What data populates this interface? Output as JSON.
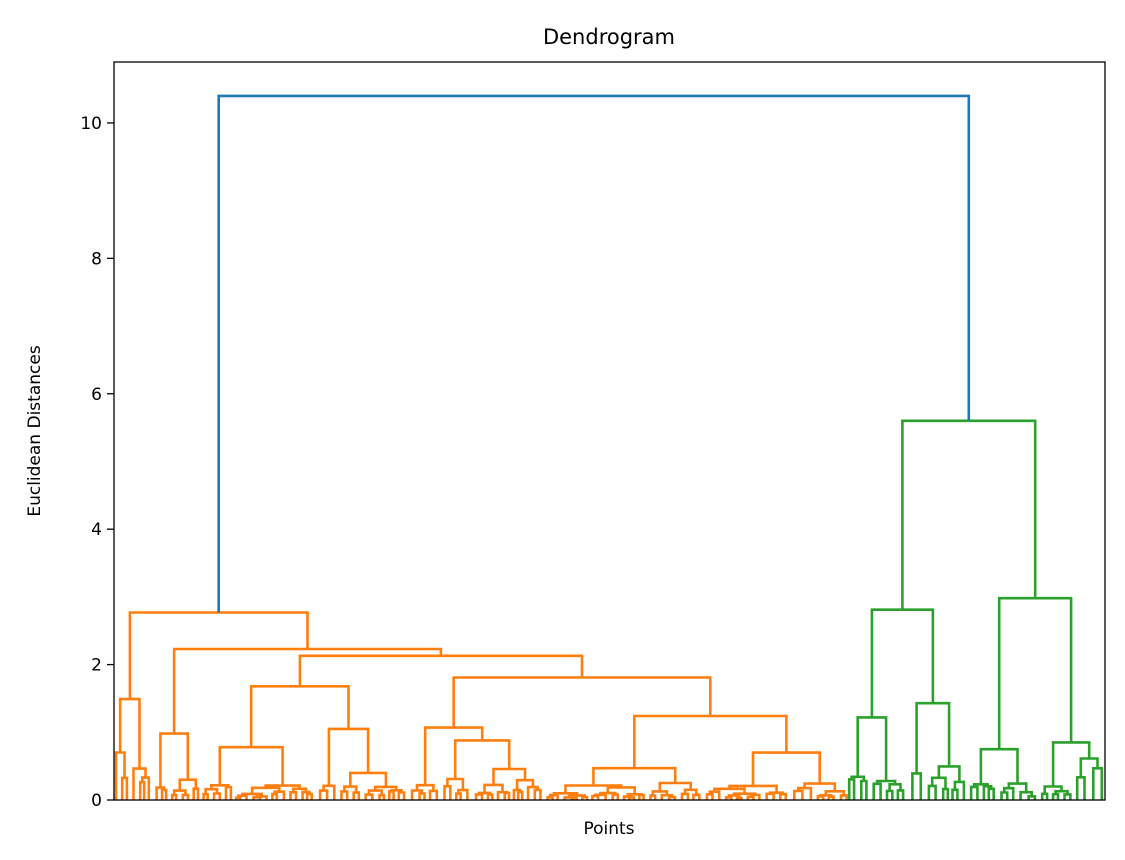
{
  "chart_data": {
    "type": "dendrogram",
    "title": "Dendrogram",
    "xlabel": "Points",
    "ylabel": "Euclidean Distances",
    "ylim": [
      0,
      10.9
    ],
    "yticks": [
      0,
      2,
      4,
      6,
      8,
      10
    ],
    "xticks_visible": false,
    "grid": false,
    "cluster_colors": {
      "root": "#1f77b4",
      "cluster_1": "#ff7f0e",
      "cluster_2": "#2ca02c"
    },
    "merges": [
      {
        "cluster": "root",
        "height": 10.4
      },
      {
        "cluster": "cluster_1",
        "height": 2.77
      },
      {
        "cluster": "cluster_1",
        "height": 2.23
      },
      {
        "cluster": "cluster_1",
        "height": 2.13
      },
      {
        "cluster": "cluster_1",
        "height": 1.81
      },
      {
        "cluster": "cluster_1",
        "height": 1.68
      },
      {
        "cluster": "cluster_1",
        "height": 1.49
      },
      {
        "cluster": "cluster_1",
        "height": 1.24
      },
      {
        "cluster": "cluster_1",
        "height": 1.07
      },
      {
        "cluster": "cluster_2",
        "height": 5.6
      },
      {
        "cluster": "cluster_2",
        "height": 2.98
      },
      {
        "cluster": "cluster_2",
        "height": 2.81
      },
      {
        "cluster": "cluster_2",
        "height": 1.43
      },
      {
        "cluster": "cluster_2",
        "height": 1.22
      },
      {
        "cluster": "cluster_2",
        "height": 0.85
      }
    ]
  }
}
